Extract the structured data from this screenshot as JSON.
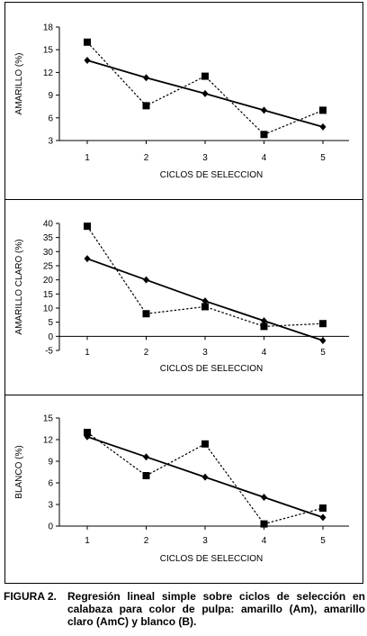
{
  "chart_data": [
    {
      "type": "line",
      "ylabel": "AMARILLO (%)",
      "xlabel": "CICLOS DE SELECCION",
      "categories": [
        "1",
        "2",
        "3",
        "4",
        "5"
      ],
      "yticks": [
        "3",
        "6",
        "9",
        "12",
        "15",
        "18"
      ],
      "ylim": [
        3,
        18
      ],
      "grid": false,
      "series": [
        {
          "marker": "square",
          "line": "dashed",
          "values": [
            16.0,
            7.6,
            11.5,
            3.8,
            7.0
          ]
        },
        {
          "marker": "diamond",
          "line": "solid",
          "values": [
            13.6,
            11.3,
            9.2,
            7.0,
            4.8
          ]
        }
      ]
    },
    {
      "type": "line",
      "ylabel": "AMARILLO CLARO (%)",
      "xlabel": "CICLOS DE SELECCION",
      "categories": [
        "1",
        "2",
        "3",
        "4",
        "5"
      ],
      "yticks": [
        "-5",
        "0",
        "5",
        "10",
        "15",
        "20",
        "25",
        "30",
        "35",
        "40"
      ],
      "ylim": [
        -5,
        40
      ],
      "grid": false,
      "series": [
        {
          "marker": "square",
          "line": "dashed",
          "values": [
            39.0,
            8.0,
            10.5,
            3.5,
            4.5
          ]
        },
        {
          "marker": "diamond",
          "line": "solid",
          "values": [
            27.5,
            20.0,
            12.5,
            5.5,
            -1.5
          ]
        }
      ]
    },
    {
      "type": "line",
      "ylabel": "BLANCO (%)",
      "xlabel": "CICLOS DE SELECCION",
      "categories": [
        "1",
        "2",
        "3",
        "4",
        "5"
      ],
      "yticks": [
        "0",
        "3",
        "6",
        "9",
        "12",
        "15"
      ],
      "ylim": [
        0,
        15
      ],
      "grid": false,
      "series": [
        {
          "marker": "square",
          "line": "dashed",
          "values": [
            13.0,
            7.0,
            11.4,
            0.3,
            2.5
          ]
        },
        {
          "marker": "diamond",
          "line": "solid",
          "values": [
            12.4,
            9.6,
            6.8,
            4.0,
            1.2
          ]
        }
      ]
    }
  ],
  "caption": {
    "label": "FIGURA 2.",
    "text": "Regresión lineal simple sobre ciclos de selección en calabaza para color de pulpa: amarillo (Am), amarillo claro (AmC) y blanco (B)."
  }
}
